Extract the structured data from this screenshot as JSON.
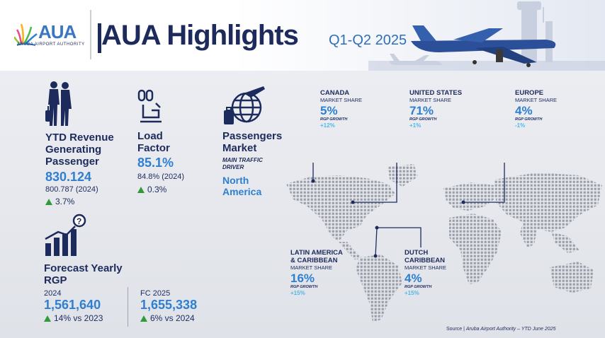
{
  "header": {
    "logo_text": "AUA",
    "logo_sub": "ARUBA AIRPORT AUTHORITY",
    "title": "AUA Highlights",
    "period": "Q1-Q2 2025"
  },
  "ytd_revenue": {
    "title_line1": "YTD Revenue",
    "title_line2": "Generating",
    "title_line3": "Passenger",
    "value": "830.124",
    "prev": "800.787 (2024)",
    "growth": "3.7%"
  },
  "load_factor": {
    "title_line1": "Load",
    "title_line2": "Factor",
    "value": "85.1%",
    "prev": "84.8% (2024)",
    "growth": "0.3%"
  },
  "passengers_market": {
    "title_line1": "Passengers",
    "title_line2": "Market",
    "driver_line1": "MAIN TRAFFIC",
    "driver_line2": "DRIVER",
    "value_line1": "North",
    "value_line2": "America"
  },
  "forecast": {
    "title_line1": "Forecast Yearly",
    "title_line2": "RGP",
    "left_year": "2024",
    "left_value": "1,561,640",
    "left_growth": "14% vs 2023",
    "right_year": "FC 2025",
    "right_value": "1,655,338",
    "right_growth": "6% vs 2024"
  },
  "regions": {
    "canada": {
      "name": "CANADA",
      "ms": "MARKET SHARE",
      "pct": "5%",
      "rgp": "RGP GROWTH",
      "rgpv": "+12%"
    },
    "us": {
      "name": "UNITED STATES",
      "ms": "MARKET SHARE",
      "pct": "71%",
      "rgp": "RGP GROWTH",
      "rgpv": "+1%"
    },
    "europe": {
      "name": "EUROPE",
      "ms": "MARKET SHARE",
      "pct": "4%",
      "rgp": "RGP GROWTH",
      "rgpv": "-1%"
    },
    "latam": {
      "name_line1": "LATIN AMERICA",
      "name_line2": "& CARIBBEAN",
      "ms": "MARKET SHARE",
      "pct": "16%",
      "rgp": "RGP GROWTH",
      "rgpv": "+15%"
    },
    "dutch": {
      "name_line1": "DUTCH",
      "name_line2": "CARIBBEAN",
      "ms": "MARKET SHARE",
      "pct": "4%",
      "rgp": "RGP GROWTH",
      "rgpv": "+15%"
    }
  },
  "source": {
    "label": "Source | ",
    "text": "Aruba Airport Authority – YTD June 2025"
  },
  "colors": {
    "navy": "#1d2b5c",
    "accent_blue": "#2f7fd0",
    "light_blue": "#4fb9e6",
    "growth_green": "#2e9a3a"
  },
  "icons": [
    "travelers-icon",
    "airplane-seat-icon",
    "globe-plane-icon",
    "rgp-chart-icon",
    "world-map-icon",
    "airplane-icon"
  ]
}
